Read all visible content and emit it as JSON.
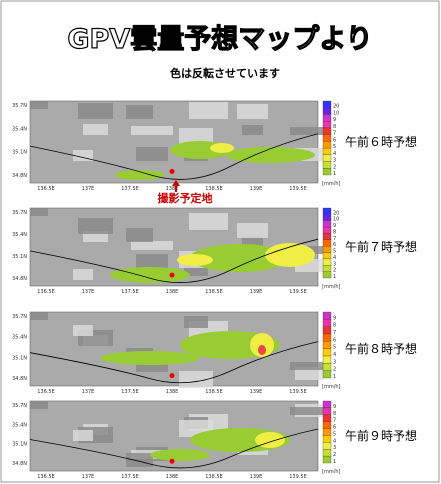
{
  "header": {
    "title": "GPV雲量予想マップより",
    "subtitle": "色は反転させています"
  },
  "annotation": "撮影予定地",
  "lat_labels": [
    "35.7N",
    "35.4N",
    "35.1N",
    "34.8N"
  ],
  "lon_labels": [
    "136.5E",
    "137E",
    "137.5E",
    "138E",
    "138.5E",
    "139E",
    "139.5E"
  ],
  "unit": "[mm/h]",
  "panels": [
    {
      "label": "午前６時予想",
      "scale": [
        "20",
        "10",
        "9",
        "8",
        "7",
        "6",
        "5",
        "4",
        "3",
        "2",
        "1"
      ]
    },
    {
      "label": "午前７時予想",
      "scale": [
        "20",
        "10",
        "9",
        "8",
        "7",
        "6",
        "5",
        "4",
        "3",
        "2",
        "1"
      ]
    },
    {
      "label": "午前８時予想",
      "scale": [
        "9",
        "8",
        "7",
        "6",
        "5",
        "4",
        "3",
        "2",
        "1"
      ]
    },
    {
      "label": "午前９時予想",
      "scale": [
        "9",
        "8",
        "7",
        "6",
        "5",
        "4",
        "3",
        "2",
        "1"
      ]
    }
  ]
}
